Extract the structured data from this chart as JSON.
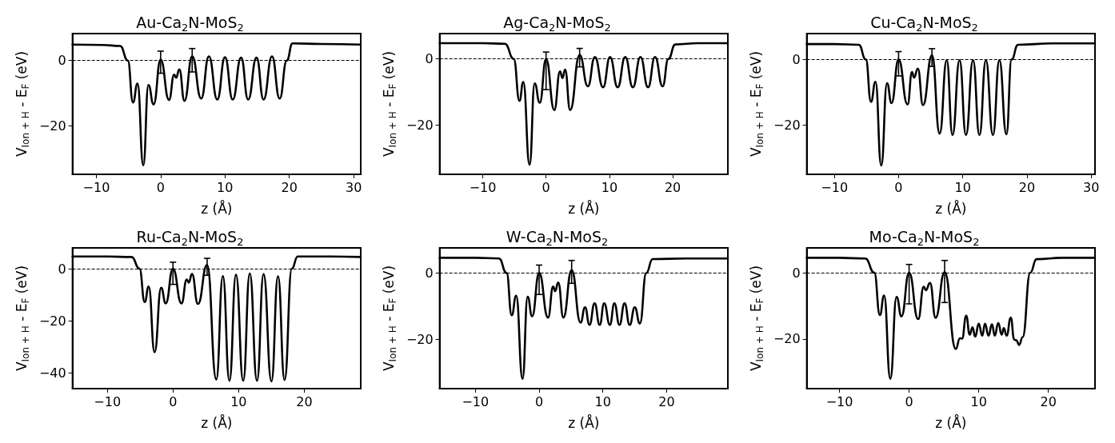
{
  "chart_data": [
    {
      "type": "line",
      "title": "Au-Ca$_{2}$N-MoS$_{2}$",
      "xlabel": "z (Å)",
      "ylabel": "V$_{Ion + H}$ - E$_{F}$ (eV)",
      "xlim": [
        -13.7,
        31.1
      ],
      "xticks": [
        -10,
        0,
        10,
        20,
        30
      ],
      "ylim": [
        -35,
        8.3
      ],
      "yticks": [
        -20,
        0
      ],
      "grid": false,
      "marker": "none",
      "line_style": "solid",
      "ref_lines": [
        {
          "axis": "y",
          "value": 0,
          "color": "#000000",
          "line_style": "dashed"
        }
      ],
      "series": [
        {
          "color": "#000000",
          "x": [
            -13.7,
            -9,
            -6.3,
            -5.1,
            -4.3,
            -3.6,
            -2.7,
            -1.9,
            -1.1,
            0,
            1.3,
            2.1,
            2.4,
            2.9,
            3.7,
            4.9,
            6.3,
            7.5,
            8.8,
            10,
            11.2,
            12.5,
            13.6,
            14.9,
            16,
            17.3,
            18.5,
            19.6,
            20.5,
            25,
            31.1
          ],
          "values": [
            4.9,
            4.8,
            4.5,
            0,
            -12.9,
            -7.1,
            -32.2,
            -7.5,
            -13.5,
            0.3,
            -12.1,
            -4.3,
            -5.3,
            -2.7,
            -12.4,
            1.3,
            -11.7,
            1.3,
            -12,
            1.0,
            -12,
            0.9,
            -12,
            0.9,
            -12,
            1.3,
            -11.7,
            0,
            5.3,
            5.1,
            4.9
          ],
          "errors": [
            null,
            null,
            null,
            null,
            null,
            null,
            null,
            null,
            null,
            [
              -3.9,
              2.9
            ],
            null,
            null,
            null,
            null,
            null,
            [
              -3.5,
              3.7
            ],
            null,
            null,
            null,
            null,
            null,
            null,
            null,
            null,
            null,
            null,
            null,
            null,
            null,
            null,
            null
          ]
        }
      ]
    },
    {
      "type": "line",
      "title": "Ag-Ca$_{2}$N-MoS$_{2}$",
      "xlabel": "z (Å)",
      "ylabel": "V$_{Ion + H}$ - E$_{F}$ (eV)",
      "xlim": [
        -16.8,
        28.7
      ],
      "xticks": [
        -10,
        0,
        10,
        20
      ],
      "ylim": [
        -35,
        7.7
      ],
      "yticks": [
        -20,
        0
      ],
      "grid": false,
      "marker": "none",
      "line_style": "solid",
      "ref_lines": [
        {
          "axis": "y",
          "value": 0,
          "color": "#000000",
          "line_style": "dashed"
        }
      ],
      "series": [
        {
          "color": "#000000",
          "x": [
            -16.8,
            -10,
            -6.5,
            -5.1,
            -4.2,
            -3.6,
            -2.6,
            -1.8,
            -1.0,
            0,
            1.3,
            2.2,
            2.6,
            3.0,
            3.8,
            5.3,
            6.6,
            7.7,
            9.0,
            10.1,
            11.3,
            12.5,
            13.7,
            14.9,
            16.1,
            17.2,
            18.4,
            19.3,
            20.4,
            24,
            28.7
          ],
          "values": [
            4.8,
            4.8,
            4.6,
            0,
            -12.7,
            -7,
            -32.1,
            -7.4,
            -13.3,
            0,
            -15.5,
            -3.8,
            -5.8,
            -3.2,
            -15.5,
            1.2,
            -8.3,
            0.6,
            -8.6,
            0.6,
            -8.6,
            0.6,
            -8.6,
            0.6,
            -8.6,
            0.6,
            -8.3,
            0,
            4.4,
            4.8,
            4.8
          ],
          "errors": [
            null,
            null,
            null,
            null,
            null,
            null,
            null,
            null,
            null,
            [
              -9.3,
              2.1
            ],
            null,
            null,
            null,
            null,
            null,
            [
              -2.4,
              3.2
            ],
            null,
            null,
            null,
            null,
            null,
            null,
            null,
            null,
            null,
            null,
            null,
            null,
            null,
            null,
            null
          ]
        }
      ]
    },
    {
      "type": "line",
      "title": "Cu-Ca$_{2}$N-MoS$_{2}$",
      "xlabel": "z (Å)",
      "ylabel": "V$_{Ion + H}$ - E$_{F}$ (eV)",
      "xlim": [
        -14.3,
        30.6
      ],
      "xticks": [
        -10,
        0,
        10,
        20,
        30
      ],
      "ylim": [
        -35,
        7.9
      ],
      "yticks": [
        -20,
        0
      ],
      "grid": false,
      "marker": "none",
      "line_style": "solid",
      "ref_lines": [
        {
          "axis": "y",
          "value": 0,
          "color": "#000000",
          "line_style": "dashed"
        }
      ],
      "series": [
        {
          "color": "#000000",
          "x": [
            -14.3,
            -10,
            -6.2,
            -5.1,
            -4.3,
            -3.6,
            -2.7,
            -1.8,
            -1.1,
            0,
            1.4,
            2.1,
            2.4,
            3.0,
            3.8,
            5.2,
            6.4,
            7.5,
            8.4,
            9.5,
            10.5,
            11.6,
            12.6,
            13.6,
            14.7,
            15.7,
            16.8,
            17.6,
            18.6,
            24,
            30.6
          ],
          "values": [
            4.7,
            4.7,
            4.5,
            0,
            -12.9,
            -6.8,
            -32.3,
            -7.2,
            -13.3,
            0,
            -13.7,
            -3.8,
            -5.5,
            -2.8,
            -13.9,
            1.3,
            -22.6,
            -0.2,
            -23,
            -0.2,
            -23,
            -0.2,
            -23,
            -0.2,
            -23,
            -0.2,
            -22.8,
            0,
            4.5,
            4.9,
            4.9
          ],
          "errors": [
            null,
            null,
            null,
            null,
            null,
            null,
            null,
            null,
            null,
            [
              -5,
              2.4
            ],
            null,
            null,
            null,
            null,
            null,
            [
              -2.1,
              3.3
            ],
            null,
            null,
            null,
            null,
            null,
            null,
            null,
            null,
            null,
            null,
            null,
            null,
            null,
            null,
            null
          ]
        }
      ]
    },
    {
      "type": "line",
      "title": "Ru-Ca$_{2}$N-MoS$_{2}$",
      "xlabel": "z (Å)",
      "ylabel": "V$_{Ion + H}$ - E$_{F}$ (eV)",
      "xlim": [
        -15.3,
        28.6
      ],
      "xticks": [
        -10,
        0,
        10,
        20
      ],
      "ylim": [
        -46,
        8
      ],
      "yticks": [
        -40,
        -20,
        0
      ],
      "grid": false,
      "marker": "none",
      "line_style": "solid",
      "ref_lines": [
        {
          "axis": "y",
          "value": 0,
          "color": "#000000",
          "line_style": "dashed"
        }
      ],
      "series": [
        {
          "color": "#000000",
          "x": [
            -15.3,
            -10,
            -6.3,
            -5.1,
            -4.3,
            -3.7,
            -2.8,
            -1.8,
            -1.1,
            0,
            1.3,
            2.1,
            2.4,
            2.9,
            3.8,
            5.2,
            6.6,
            7.6,
            8.6,
            9.6,
            10.7,
            11.7,
            12.8,
            13.8,
            15.0,
            16.0,
            17.0,
            18.1,
            19.0,
            24,
            28.6
          ],
          "values": [
            4.7,
            4.7,
            4.5,
            0,
            -12.8,
            -6.8,
            -32,
            -7.3,
            -13.3,
            0,
            -13.3,
            -4.1,
            -5.3,
            -2,
            -13.5,
            1.5,
            -42.5,
            -2.8,
            -43,
            -2.3,
            -43,
            -1.8,
            -43,
            -2.1,
            -43.2,
            -2.9,
            -42.7,
            0,
            4.7,
            4.7,
            4.5
          ],
          "errors": [
            null,
            null,
            null,
            null,
            null,
            null,
            null,
            null,
            null,
            [
              -6,
              2.5
            ],
            null,
            null,
            null,
            null,
            null,
            [
              -2.5,
              4
            ],
            null,
            null,
            null,
            null,
            null,
            null,
            null,
            null,
            null,
            null,
            null,
            null,
            null,
            null,
            null
          ]
        }
      ]
    },
    {
      "type": "line",
      "title": "W-Ca$_{2}$N-MoS$_{2}$",
      "xlabel": "z (Å)",
      "ylabel": "V$_{Ion + H}$ - E$_{F}$ (eV)",
      "xlim": [
        -15.6,
        29.6
      ],
      "xticks": [
        -10,
        0,
        10,
        20
      ],
      "ylim": [
        -35,
        7.6
      ],
      "yticks": [
        -20,
        0
      ],
      "grid": false,
      "marker": "none",
      "line_style": "solid",
      "ref_lines": [
        {
          "axis": "y",
          "value": 0,
          "color": "#000000",
          "line_style": "dashed"
        }
      ],
      "series": [
        {
          "color": "#000000",
          "x": [
            -15.6,
            -10,
            -6.3,
            -5.1,
            -4.3,
            -3.6,
            -2.6,
            -1.8,
            -1.1,
            0,
            1.4,
            2.2,
            2.5,
            3.0,
            3.8,
            5.1,
            6.5,
            7.2,
            7.9,
            8.7,
            9.5,
            10.2,
            11.1,
            11.8,
            12.6,
            13.4,
            14.2,
            15.0,
            15.8,
            16.8,
            17.8,
            23,
            29.6
          ],
          "values": [
            4.6,
            4.6,
            4.4,
            0,
            -12.8,
            -6.9,
            -32,
            -7.2,
            -13.1,
            0,
            -13.5,
            -4.1,
            -5.5,
            -2.9,
            -13.5,
            0.9,
            -15,
            -10.4,
            -15.7,
            -9.2,
            -15.7,
            -9.2,
            -15.7,
            -9.2,
            -15.7,
            -9.2,
            -15.7,
            -10.4,
            -15.3,
            0,
            4.2,
            4.4,
            4.4
          ],
          "errors": [
            null,
            null,
            null,
            null,
            null,
            null,
            null,
            null,
            null,
            [
              -6.5,
              2.4
            ],
            null,
            null,
            null,
            null,
            null,
            [
              -3.1,
              3.8
            ],
            null,
            null,
            null,
            null,
            null,
            null,
            null,
            null,
            null,
            null,
            null,
            null,
            null,
            null,
            null,
            null,
            null
          ]
        }
      ]
    },
    {
      "type": "line",
      "title": "Mo-Ca$_{2}$N-MoS$_{2}$",
      "xlabel": "z (Å)",
      "ylabel": "V$_{Ion + H}$ - E$_{F}$ (eV)",
      "xlim": [
        -14.7,
        26.7
      ],
      "xticks": [
        -10,
        0,
        10,
        20
      ],
      "ylim": [
        -35,
        7.5
      ],
      "yticks": [
        -20,
        0
      ],
      "grid": false,
      "marker": "none",
      "line_style": "solid",
      "ref_lines": [
        {
          "axis": "y",
          "value": 0,
          "color": "#000000",
          "line_style": "dashed"
        }
      ],
      "series": [
        {
          "color": "#000000",
          "x": [
            -14.7,
            -10,
            -6.3,
            -5.0,
            -4.2,
            -3.6,
            -2.7,
            -1.8,
            -1.1,
            0,
            1.3,
            2.1,
            2.4,
            3.0,
            3.8,
            5.1,
            6.7,
            7.3,
            7.6,
            8.2,
            8.7,
            9.1,
            9.5,
            10.0,
            10.5,
            10.9,
            11.4,
            11.9,
            12.3,
            12.8,
            13.3,
            13.6,
            14.0,
            14.6,
            15.1,
            15.4,
            15.8,
            16.3,
            17.4,
            18.3,
            22,
            26.7
          ],
          "values": [
            4.5,
            4.5,
            4.3,
            0,
            -12.8,
            -6.9,
            -32,
            -7.3,
            -13.2,
            0,
            -14,
            -4.2,
            -5.3,
            -3.1,
            -13.6,
            0.2,
            -23,
            -19.8,
            -19.9,
            -13,
            -18.7,
            -16.5,
            -19.3,
            -15.4,
            -19,
            -15.4,
            -19,
            -15.6,
            -19,
            -15.2,
            -18.7,
            -16.7,
            -19,
            -13.6,
            -20.2,
            -20.4,
            -21.8,
            -19.5,
            0,
            4.1,
            4.5,
            4.5
          ],
          "errors": [
            null,
            null,
            null,
            null,
            null,
            null,
            null,
            null,
            null,
            [
              -9.4,
              2.5
            ],
            null,
            null,
            null,
            null,
            null,
            [
              -9,
              3.7
            ],
            null,
            null,
            null,
            null,
            null,
            null,
            null,
            null,
            null,
            null,
            null,
            null,
            null,
            null,
            null,
            null,
            null,
            null,
            null,
            null,
            null,
            null,
            null,
            null,
            null,
            null
          ]
        }
      ]
    }
  ]
}
